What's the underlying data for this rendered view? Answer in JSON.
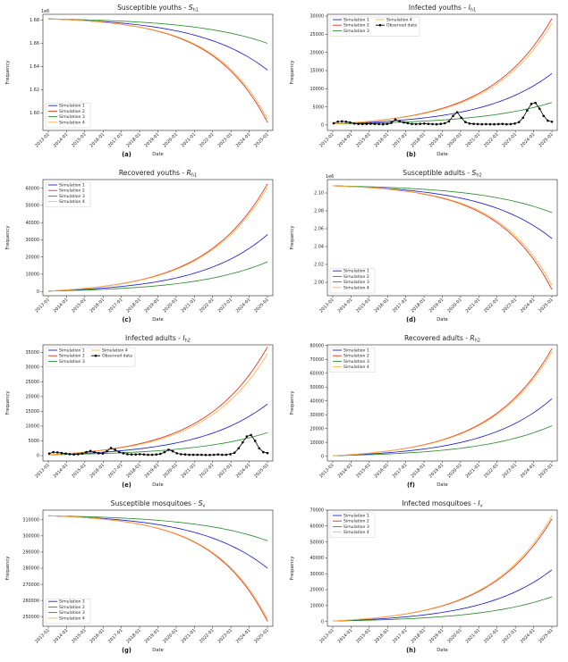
{
  "shared": {
    "xlabel": "Date",
    "ylabel": "Frequency",
    "x_tick_labels": [
      "2013-01",
      "2014-01",
      "2015-01",
      "2016-01",
      "2017-01",
      "2018-01",
      "2019-01",
      "2020-01",
      "2021-01",
      "2022-01",
      "2023-01",
      "2024-01",
      "2025-01"
    ],
    "series_names": [
      "Simulation 1",
      "Simulation 2",
      "Simulation 3",
      "Simulation 4"
    ],
    "observed_name": "Observed data",
    "colors": {
      "sim1": "#1f1fd6",
      "sim2": "#e0301e",
      "sim3": "#2e8b2e",
      "sim4": "#ffb347",
      "observed": "#000000"
    }
  },
  "chart_data": [
    {
      "type": "line",
      "letter": "(a)",
      "title_main": "Susceptible youths - ",
      "title_sym": "S",
      "title_sub": "h1",
      "exponent": "1e6",
      "ylim": [
        1.585,
        1.685
      ],
      "yticks": [
        "1.60",
        "1.62",
        "1.64",
        "1.66",
        "1.68"
      ],
      "ytick_values": [
        1.6,
        1.62,
        1.64,
        1.66,
        1.68
      ],
      "xlim": [
        0,
        12
      ],
      "legend": "lower-left",
      "series": [
        {
          "name": "Simulation 1",
          "start": 1.681,
          "end": 1.637,
          "k": 3.2
        },
        {
          "name": "Simulation 2",
          "start": 1.681,
          "end": 1.592,
          "k": 4.0
        },
        {
          "name": "Simulation 3",
          "start": 1.681,
          "end": 1.66,
          "k": 3.0
        },
        {
          "name": "Simulation 4",
          "start": 1.681,
          "end": 1.595,
          "k": 4.0
        }
      ]
    },
    {
      "type": "line",
      "letter": "(b)",
      "title_main": "Infected youths - ",
      "title_sym": "I",
      "title_sub": "h1",
      "exponent": "",
      "ylim": [
        -1500,
        30500
      ],
      "yticks": [
        "0",
        "5000",
        "10000",
        "15000",
        "20000",
        "25000",
        "30000"
      ],
      "ytick_values": [
        0,
        5000,
        10000,
        15000,
        20000,
        25000,
        30000
      ],
      "xlim": [
        0,
        12
      ],
      "legend": "upper-left",
      "series": [
        {
          "name": "Simulation 1",
          "start": 300,
          "end": 14200,
          "k": 3.2
        },
        {
          "name": "Simulation 2",
          "start": 300,
          "end": 29300,
          "k": 3.5
        },
        {
          "name": "Simulation 3",
          "start": 300,
          "end": 6200,
          "k": 3.0
        },
        {
          "name": "Simulation 4",
          "start": 300,
          "end": 28000,
          "k": 3.5
        }
      ],
      "observed": [
        500,
        900,
        1000,
        900,
        700,
        400,
        300,
        250,
        300,
        350,
        300,
        250,
        200,
        300,
        600,
        1500,
        1000,
        700,
        500,
        300,
        250,
        300,
        400,
        300,
        250,
        200,
        300,
        500,
        1000,
        2500,
        3500,
        2000,
        800,
        400,
        300,
        250,
        200,
        250,
        200,
        200,
        250,
        300,
        200,
        250,
        400,
        800,
        2000,
        4000,
        5800,
        6100,
        4500,
        2500,
        1200,
        900
      ]
    },
    {
      "type": "line",
      "letter": "(c)",
      "title_main": "Recovered youths - ",
      "title_sym": "R",
      "title_sub": "h1",
      "exponent": "",
      "ylim": [
        -2500,
        65000
      ],
      "yticks": [
        "0",
        "10000",
        "20000",
        "30000",
        "40000",
        "50000",
        "60000"
      ],
      "ytick_values": [
        0,
        10000,
        20000,
        30000,
        40000,
        50000,
        60000
      ],
      "xlim": [
        0,
        12
      ],
      "legend": "upper-left",
      "series": [
        {
          "name": "Simulation 1",
          "start": 200,
          "end": 33000,
          "k": 3.2
        },
        {
          "name": "Simulation 2",
          "start": 200,
          "end": 62500,
          "k": 3.5
        },
        {
          "name": "Simulation 3",
          "start": 200,
          "end": 17200,
          "k": 3.0
        },
        {
          "name": "Simulation 4",
          "start": 200,
          "end": 60500,
          "k": 3.5
        }
      ]
    },
    {
      "type": "line",
      "letter": "(d)",
      "title_main": "Susceptible adults - ",
      "title_sym": "S",
      "title_sub": "h2",
      "exponent": "1e6",
      "ylim": [
        1.985,
        2.115
      ],
      "yticks": [
        "2.00",
        "2.02",
        "2.04",
        "2.06",
        "2.08",
        "2.10"
      ],
      "ytick_values": [
        2.0,
        2.02,
        2.04,
        2.06,
        2.08,
        2.1
      ],
      "xlim": [
        0,
        12
      ],
      "legend": "lower-left",
      "series": [
        {
          "name": "Simulation 1",
          "start": 2.108,
          "end": 2.049,
          "k": 3.2
        },
        {
          "name": "Simulation 2",
          "start": 2.108,
          "end": 1.992,
          "k": 4.0
        },
        {
          "name": "Simulation 3",
          "start": 2.108,
          "end": 2.078,
          "k": 3.0
        },
        {
          "name": "Simulation 4",
          "start": 2.108,
          "end": 1.997,
          "k": 4.0
        }
      ]
    },
    {
      "type": "line",
      "letter": "(e)",
      "title_main": "Infected adults - ",
      "title_sym": "I",
      "title_sub": "h2",
      "exponent": "",
      "ylim": [
        -1800,
        37500
      ],
      "yticks": [
        "0",
        "5000",
        "10000",
        "15000",
        "20000",
        "25000",
        "30000",
        "35000"
      ],
      "ytick_values": [
        0,
        5000,
        10000,
        15000,
        20000,
        25000,
        30000,
        35000
      ],
      "xlim": [
        0,
        12
      ],
      "legend": "upper-left",
      "series": [
        {
          "name": "Simulation 1",
          "start": 300,
          "end": 17500,
          "k": 3.2
        },
        {
          "name": "Simulation 2",
          "start": 300,
          "end": 36800,
          "k": 3.5
        },
        {
          "name": "Simulation 3",
          "start": 300,
          "end": 7800,
          "k": 3.0
        },
        {
          "name": "Simulation 4",
          "start": 300,
          "end": 34500,
          "k": 3.5
        }
      ],
      "observed": [
        700,
        1200,
        1100,
        900,
        700,
        500,
        400,
        500,
        700,
        1200,
        1600,
        1200,
        800,
        700,
        1500,
        2600,
        2000,
        1200,
        800,
        500,
        400,
        400,
        500,
        400,
        300,
        300,
        400,
        600,
        1200,
        2000,
        1500,
        800,
        500,
        400,
        300,
        300,
        300,
        300,
        250,
        250,
        300,
        400,
        300,
        300,
        500,
        1000,
        2500,
        4500,
        6500,
        7000,
        5000,
        2500,
        1200,
        900
      ]
    },
    {
      "type": "line",
      "letter": "(f)",
      "title_main": "Recovered adults - ",
      "title_sym": "R",
      "title_sub": "h2",
      "exponent": "",
      "ylim": [
        -3500,
        80500
      ],
      "yticks": [
        "0",
        "10000",
        "20000",
        "30000",
        "40000",
        "50000",
        "60000",
        "70000",
        "80000"
      ],
      "ytick_values": [
        0,
        10000,
        20000,
        30000,
        40000,
        50000,
        60000,
        70000,
        80000
      ],
      "xlim": [
        0,
        12
      ],
      "legend": "upper-left",
      "series": [
        {
          "name": "Simulation 1",
          "start": 300,
          "end": 41500,
          "k": 3.2
        },
        {
          "name": "Simulation 2",
          "start": 300,
          "end": 77800,
          "k": 3.5
        },
        {
          "name": "Simulation 3",
          "start": 300,
          "end": 22000,
          "k": 3.0
        },
        {
          "name": "Simulation 4",
          "start": 300,
          "end": 75500,
          "k": 3.5
        }
      ]
    },
    {
      "type": "line",
      "letter": "(g)",
      "title_main": "Susceptible mosquitoes - ",
      "title_sym": "S",
      "title_sub": "v",
      "exponent": "",
      "ylim": [
        244000,
        316000
      ],
      "yticks": [
        "250000",
        "260000",
        "270000",
        "280000",
        "290000",
        "300000",
        "310000"
      ],
      "ytick_values": [
        250000,
        260000,
        270000,
        280000,
        290000,
        300000,
        310000
      ],
      "xlim": [
        0,
        12
      ],
      "legend": "lower-left",
      "series": [
        {
          "name": "Simulation 1",
          "start": 312500,
          "end": 280000,
          "k": 3.2
        },
        {
          "name": "Simulation 2",
          "start": 312500,
          "end": 247000,
          "k": 4.0
        },
        {
          "name": "Simulation 3",
          "start": 312500,
          "end": 297000,
          "k": 3.0
        },
        {
          "name": "Simulation 4",
          "start": 312500,
          "end": 248500,
          "k": 4.0
        }
      ]
    },
    {
      "type": "line",
      "letter": "(h)",
      "title_main": "Infected mosquitoes - ",
      "title_sym": "I",
      "title_sub": "v",
      "exponent": "",
      "ylim": [
        -3000,
        70000
      ],
      "yticks": [
        "0",
        "10000",
        "20000",
        "30000",
        "40000",
        "50000",
        "60000",
        "70000"
      ],
      "ytick_values": [
        0,
        10000,
        20000,
        30000,
        40000,
        50000,
        60000,
        70000
      ],
      "xlim": [
        0,
        12
      ],
      "legend": "upper-left",
      "series": [
        {
          "name": "Simulation 1",
          "start": 300,
          "end": 32500,
          "k": 3.2
        },
        {
          "name": "Simulation 2",
          "start": 300,
          "end": 64500,
          "k": 3.5
        },
        {
          "name": "Simulation 3",
          "start": 300,
          "end": 15500,
          "k": 3.0
        },
        {
          "name": "Simulation 4",
          "start": 300,
          "end": 66500,
          "k": 3.5
        }
      ]
    }
  ]
}
